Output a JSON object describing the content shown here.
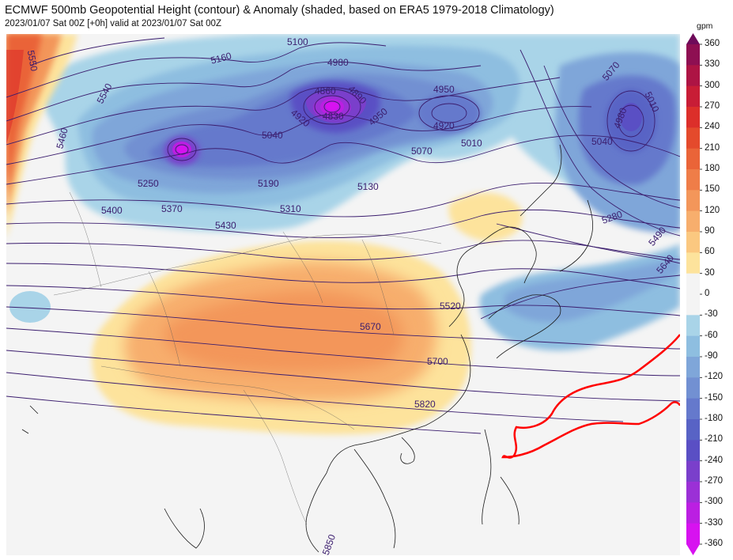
{
  "header": {
    "title": "ECMWF 500mb Geopotential Height (contour) & Anomaly (shaded, based on ERA5 1979-2018 Climatology)",
    "subtitle": "2023/01/07 Sat 00Z [+0h] valid at 2023/01/07 Sat 00Z"
  },
  "colorbar": {
    "unit": "gpm",
    "ticks": [
      {
        "label": "360",
        "color": "#6e0b5a"
      },
      {
        "label": "330",
        "color": "#8e0f52"
      },
      {
        "label": "300",
        "color": "#ad1444"
      },
      {
        "label": "270",
        "color": "#c81d36"
      },
      {
        "label": "240",
        "color": "#dc2f2a"
      },
      {
        "label": "210",
        "color": "#e44a2c"
      },
      {
        "label": "180",
        "color": "#ea6438"
      },
      {
        "label": "150",
        "color": "#ef7d48"
      },
      {
        "label": "120",
        "color": "#f3965a"
      },
      {
        "label": "90",
        "color": "#f7ae6d"
      },
      {
        "label": "60",
        "color": "#fbc880"
      },
      {
        "label": "30",
        "color": "#fde39c"
      },
      {
        "label": "0",
        "color": "#f4f4f4"
      },
      {
        "label": "-30",
        "color": "#f4f4f4"
      },
      {
        "label": "-60",
        "color": "#a9d4e8"
      },
      {
        "label": "-90",
        "color": "#8ebee0"
      },
      {
        "label": "-120",
        "color": "#7fa6d9"
      },
      {
        "label": "-150",
        "color": "#7290d2"
      },
      {
        "label": "-180",
        "color": "#6579cc"
      },
      {
        "label": "-210",
        "color": "#5863c5"
      },
      {
        "label": "-240",
        "color": "#5a4fc4"
      },
      {
        "label": "-270",
        "color": "#7a3fcb"
      },
      {
        "label": "-300",
        "color": "#9b30d6"
      },
      {
        "label": "-330",
        "color": "#bb1fe2"
      },
      {
        "label": "-360",
        "color": "#d712f0"
      }
    ]
  },
  "map": {
    "contour_labels": [
      "5550",
      "5540",
      "5460",
      "5160",
      "5100",
      "4980",
      "4860",
      "4890",
      "4830",
      "4920",
      "4950",
      "4950",
      "4920",
      "5010",
      "5070",
      "5010",
      "4980",
      "5040",
      "5040",
      "5190",
      "5130",
      "5070",
      "5250",
      "5370",
      "5400",
      "5310",
      "5430",
      "5280",
      "5490",
      "5640",
      "5520",
      "5670",
      "5700",
      "5820",
      "5850"
    ],
    "colors": {
      "freezing_line": "#ff0000",
      "contour": "#3b1d6e",
      "coast": "#1a1a1a"
    }
  }
}
